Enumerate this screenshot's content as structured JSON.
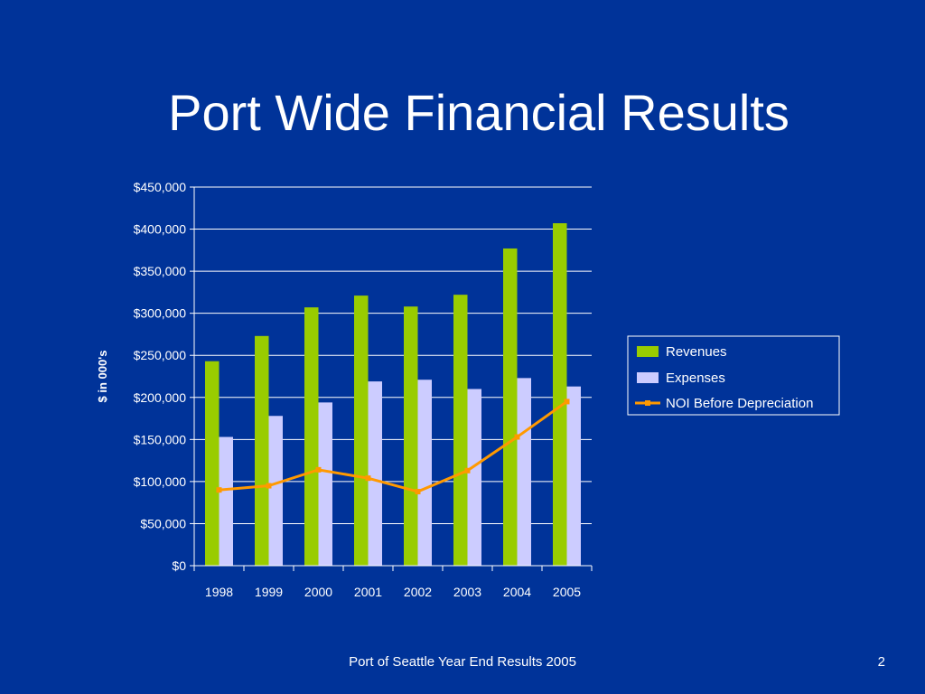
{
  "slide": {
    "title": "Port Wide Financial Results",
    "footer": "Port of Seattle Year End Results 2005",
    "page_number": "2"
  },
  "colors": {
    "background": "#003399",
    "revenues": "#99CC00",
    "expenses": "#CCCCFF",
    "noi": "#FF9900",
    "text": "#FFFFFF"
  },
  "chart_data": {
    "type": "bar",
    "title": "",
    "xlabel": "",
    "ylabel": "$ in 000's",
    "categories": [
      "1998",
      "1999",
      "2000",
      "2001",
      "2002",
      "2003",
      "2004",
      "2005"
    ],
    "ylim": [
      0,
      450000
    ],
    "yticks": [
      0,
      50000,
      100000,
      150000,
      200000,
      250000,
      300000,
      350000,
      400000,
      450000
    ],
    "ytick_labels": [
      "$0",
      "$50,000",
      "$100,000",
      "$150,000",
      "$200,000",
      "$250,000",
      "$300,000",
      "$350,000",
      "$400,000",
      "$450,000"
    ],
    "grid": true,
    "legend_position": "right",
    "series": [
      {
        "name": "Revenues",
        "kind": "bar",
        "values": [
          243000,
          273000,
          307000,
          321000,
          308000,
          322000,
          377000,
          407000
        ]
      },
      {
        "name": "Expenses",
        "kind": "bar",
        "values": [
          153000,
          178000,
          194000,
          219000,
          221000,
          210000,
          223000,
          213000
        ]
      },
      {
        "name": "NOI Before Depreciation",
        "kind": "line",
        "values": [
          90000,
          95000,
          114000,
          104000,
          88000,
          113000,
          153000,
          195000
        ]
      }
    ]
  }
}
